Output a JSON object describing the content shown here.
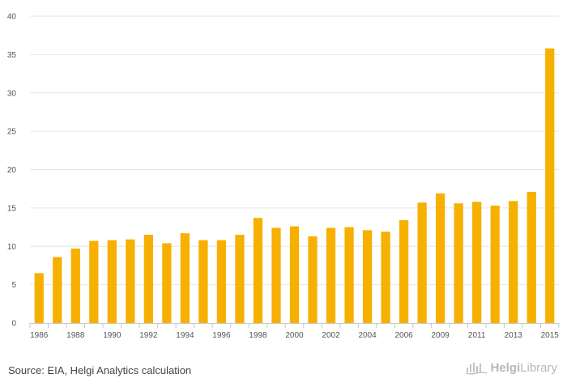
{
  "chart_data": {
    "type": "bar",
    "categories": [
      "1986",
      "1987",
      "1988",
      "1989",
      "1990",
      "1991",
      "1992",
      "1993",
      "1994",
      "1995",
      "1996",
      "1997",
      "1998",
      "1999",
      "2000",
      "2001",
      "2002",
      "2003",
      "2004",
      "2005",
      "2006",
      "2008",
      "2009",
      "2010",
      "2011",
      "2012",
      "2013",
      "2014",
      "2015"
    ],
    "tick_labels": [
      "1986",
      "",
      "1988",
      "",
      "1990",
      "",
      "1992",
      "",
      "1994",
      "",
      "1996",
      "",
      "1998",
      "",
      "2000",
      "",
      "2002",
      "",
      "2004",
      "",
      "2006",
      "",
      "2009",
      "",
      "2011",
      "",
      "2013",
      "",
      "2015"
    ],
    "values": [
      6.5,
      8.6,
      9.7,
      10.7,
      10.8,
      10.9,
      11.5,
      10.4,
      11.7,
      10.8,
      10.8,
      11.5,
      13.7,
      12.4,
      12.6,
      11.3,
      12.4,
      12.5,
      12.1,
      11.9,
      13.4,
      15.7,
      16.9,
      15.6,
      15.8,
      15.3,
      15.9,
      17.1,
      35.8
    ],
    "ylim": [
      0,
      40
    ],
    "yticks": [
      "0",
      "5",
      "10",
      "15",
      "20",
      "25",
      "30",
      "35",
      "40"
    ],
    "title": "",
    "xlabel": "",
    "ylabel": "",
    "bar_color": "#f7b000",
    "grid": true
  },
  "footer": {
    "source": "Source: EIA, Helgi Analytics calculation",
    "brand_first": "Helgi",
    "brand_second": "Library",
    "brand_color": "#b8b8b8"
  }
}
